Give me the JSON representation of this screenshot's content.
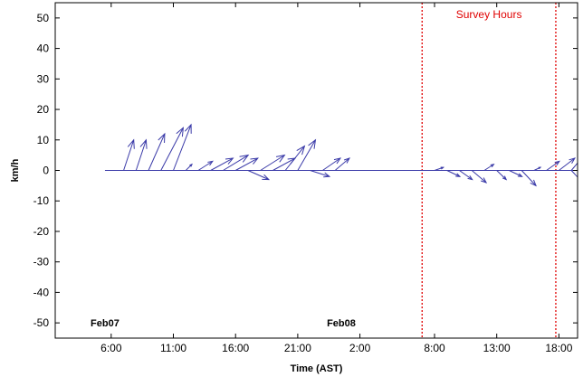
{
  "chart_data": {
    "type": "quiver",
    "xlabel": "Time (AST)",
    "ylabel": "km/h",
    "ylim": [
      -55,
      55
    ],
    "xlim": [
      "Feb07 01:30",
      "Feb08 19:30"
    ],
    "yticks": [
      50,
      40,
      30,
      20,
      10,
      0,
      -10,
      -20,
      -30,
      -40,
      -50
    ],
    "xticks": [
      {
        "t": "Feb07 06:00",
        "label": "6:00"
      },
      {
        "t": "Feb07 11:00",
        "label": "11:00"
      },
      {
        "t": "Feb07 16:00",
        "label": "16:00"
      },
      {
        "t": "Feb07 21:00",
        "label": "21:00"
      },
      {
        "t": "Feb08 02:00",
        "label": "2:00"
      },
      {
        "t": "Feb08 08:00",
        "label": "8:00"
      },
      {
        "t": "Feb08 13:00",
        "label": "13:00"
      },
      {
        "t": "Feb08 18:00",
        "label": "18:00"
      }
    ],
    "date_labels": [
      {
        "label": "Feb07",
        "t": "Feb07 05:30",
        "y": -50
      },
      {
        "label": "Feb08",
        "t": "Feb08 00:30",
        "y": -50
      }
    ],
    "baseline": {
      "y": 0,
      "from": "Feb07 05:30",
      "to": "Feb08 19:30"
    },
    "survey_lines": [
      "Feb08 07:00",
      "Feb08 17:45"
    ],
    "survey_label": "Survey Hours",
    "series_color": "#3a3aa8",
    "survey_color": "#e00000",
    "vectors": [
      {
        "t": "Feb07 07:00",
        "u": 3.3,
        "v": 10
      },
      {
        "t": "Feb07 08:00",
        "u": 3.3,
        "v": 10
      },
      {
        "t": "Feb07 09:00",
        "u": 5.3,
        "v": 12
      },
      {
        "t": "Feb07 10:00",
        "u": 7.3,
        "v": 14
      },
      {
        "t": "Feb07 11:00",
        "u": 5.8,
        "v": 15
      },
      {
        "t": "Feb07 12:00",
        "u": 2,
        "v": 2
      },
      {
        "t": "Feb07 13:00",
        "u": 4.7,
        "v": 3
      },
      {
        "t": "Feb07 14:00",
        "u": 7.3,
        "v": 4
      },
      {
        "t": "Feb07 15:00",
        "u": 8.2,
        "v": 5
      },
      {
        "t": "Feb07 16:00",
        "u": 7.3,
        "v": 4
      },
      {
        "t": "Feb07 17:00",
        "u": 6.8,
        "v": -3
      },
      {
        "t": "Feb07 18:00",
        "u": 7.9,
        "v": 5
      },
      {
        "t": "Feb07 19:00",
        "u": 7.3,
        "v": 4
      },
      {
        "t": "Feb07 20:00",
        "u": 6.3,
        "v": 8
      },
      {
        "t": "Feb07 21:00",
        "u": 5.8,
        "v": 10
      },
      {
        "t": "Feb07 22:00",
        "u": 6.3,
        "v": -2
      },
      {
        "t": "Feb07 23:00",
        "u": 5.8,
        "v": 4
      },
      {
        "t": "Feb08 00:00",
        "u": 4.7,
        "v": 4
      },
      {
        "t": "Feb08 08:00",
        "u": 2.9,
        "v": 1
      },
      {
        "t": "Feb08 09:00",
        "u": 4.2,
        "v": -2
      },
      {
        "t": "Feb08 10:00",
        "u": 4.2,
        "v": -3
      },
      {
        "t": "Feb08 11:00",
        "u": 4.7,
        "v": -4
      },
      {
        "t": "Feb08 12:00",
        "u": 3.1,
        "v": 2
      },
      {
        "t": "Feb08 13:00",
        "u": 3.1,
        "v": -3
      },
      {
        "t": "Feb08 14:00",
        "u": 4.2,
        "v": -2
      },
      {
        "t": "Feb08 15:00",
        "u": 4.7,
        "v": -5
      },
      {
        "t": "Feb08 16:00",
        "u": 2.1,
        "v": 1
      },
      {
        "t": "Feb08 17:00",
        "u": 4.2,
        "v": 3
      },
      {
        "t": "Feb08 18:00",
        "u": 5.2,
        "v": 4
      },
      {
        "t": "Feb08 19:00",
        "u": 4.2,
        "v": 5
      },
      {
        "t": "Feb08 19:00",
        "u": 3.7,
        "v": -4
      }
    ]
  }
}
